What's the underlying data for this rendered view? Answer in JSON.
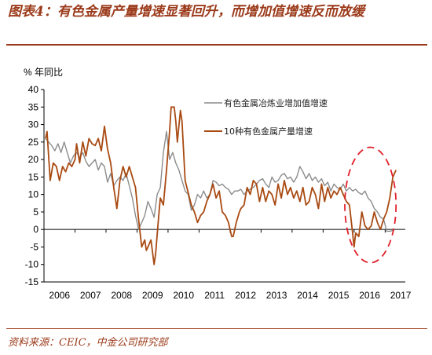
{
  "figure": {
    "title": "图表4：有色金属产量增速显著回升，而增加值增速反而放缓",
    "source": "资料来源：CEIC，中金公司研究部"
  },
  "colors": {
    "title": "#9b3a1a",
    "series_value_added": "#8c8c8c",
    "series_output": "#a94a12",
    "highlight": "#e0202a"
  },
  "chart_data": {
    "type": "line",
    "ylabel": "% 年同比",
    "ylim": [
      -15,
      40
    ],
    "yticks": [
      -15,
      -10,
      -5,
      0,
      5,
      10,
      15,
      20,
      25,
      30,
      35,
      40
    ],
    "xlim": [
      2006.0,
      2017.65
    ],
    "xticks": [
      "2006",
      "2007",
      "2008",
      "2009",
      "2010",
      "2011",
      "2012",
      "2013",
      "2014",
      "2015",
      "2016",
      "2017"
    ],
    "legend_position": "top-right",
    "highlight": {
      "shape": "dashed-ellipse",
      "x_range": [
        2015.7,
        2017.35
      ],
      "y_range": [
        -9.5,
        23.5
      ]
    },
    "series": [
      {
        "name": "有色金属冶炼业增加值增速",
        "style": "gray",
        "points": [
          [
            2006.05,
            26
          ],
          [
            2006.15,
            25
          ],
          [
            2006.25,
            24
          ],
          [
            2006.35,
            22.5
          ],
          [
            2006.45,
            24.5
          ],
          [
            2006.55,
            22
          ],
          [
            2006.65,
            25
          ],
          [
            2006.75,
            22
          ],
          [
            2006.85,
            19
          ],
          [
            2006.95,
            21
          ],
          [
            2007.05,
            22
          ],
          [
            2007.15,
            20.5
          ],
          [
            2007.25,
            22
          ],
          [
            2007.35,
            19.5
          ],
          [
            2007.45,
            18
          ],
          [
            2007.55,
            19
          ],
          [
            2007.65,
            20
          ],
          [
            2007.75,
            17
          ],
          [
            2007.85,
            19
          ],
          [
            2007.95,
            18
          ],
          [
            2008.05,
            13.5
          ],
          [
            2008.15,
            16
          ],
          [
            2008.25,
            12.5
          ],
          [
            2008.35,
            14
          ],
          [
            2008.45,
            15
          ],
          [
            2008.55,
            14
          ],
          [
            2008.65,
            16
          ],
          [
            2008.75,
            12.5
          ],
          [
            2008.85,
            9
          ],
          [
            2008.95,
            4
          ],
          [
            2009.05,
            0
          ],
          [
            2009.15,
            2
          ],
          [
            2009.25,
            4
          ],
          [
            2009.35,
            8
          ],
          [
            2009.45,
            6
          ],
          [
            2009.55,
            3.5
          ],
          [
            2009.65,
            10
          ],
          [
            2009.75,
            12
          ],
          [
            2009.85,
            22
          ],
          [
            2009.95,
            28
          ],
          [
            2010.05,
            20
          ],
          [
            2010.15,
            22
          ],
          [
            2010.25,
            19
          ],
          [
            2010.35,
            17
          ],
          [
            2010.45,
            14
          ],
          [
            2010.55,
            11
          ],
          [
            2010.65,
            10
          ],
          [
            2010.75,
            5.5
          ],
          [
            2010.85,
            7
          ],
          [
            2010.95,
            10
          ],
          [
            2011.05,
            9
          ],
          [
            2011.15,
            11
          ],
          [
            2011.25,
            9
          ],
          [
            2011.35,
            10
          ],
          [
            2011.45,
            14
          ],
          [
            2011.55,
            13.5
          ],
          [
            2011.65,
            12.5
          ],
          [
            2011.75,
            13
          ],
          [
            2011.85,
            12
          ],
          [
            2011.95,
            11.5
          ],
          [
            2012.05,
            10
          ],
          [
            2012.15,
            11
          ],
          [
            2012.25,
            11
          ],
          [
            2012.35,
            11.5
          ],
          [
            2012.45,
            10
          ],
          [
            2012.55,
            11
          ],
          [
            2012.65,
            11.5
          ],
          [
            2012.75,
            12
          ],
          [
            2012.85,
            13
          ],
          [
            2012.95,
            14
          ],
          [
            2013.05,
            14.5
          ],
          [
            2013.15,
            13
          ],
          [
            2013.25,
            12
          ],
          [
            2013.35,
            15
          ],
          [
            2013.45,
            13.5
          ],
          [
            2013.55,
            14
          ],
          [
            2013.65,
            15.5
          ],
          [
            2013.75,
            16
          ],
          [
            2013.85,
            14.5
          ],
          [
            2013.95,
            15
          ],
          [
            2014.05,
            13.5
          ],
          [
            2014.15,
            15
          ],
          [
            2014.25,
            18
          ],
          [
            2014.35,
            16.5
          ],
          [
            2014.45,
            14.5
          ],
          [
            2014.55,
            16
          ],
          [
            2014.65,
            14
          ],
          [
            2014.75,
            15
          ],
          [
            2014.85,
            13.5
          ],
          [
            2014.95,
            14.5
          ],
          [
            2015.05,
            12.5
          ],
          [
            2015.15,
            13.5
          ],
          [
            2015.25,
            11
          ],
          [
            2015.35,
            13
          ],
          [
            2015.45,
            12
          ],
          [
            2015.55,
            11.5
          ],
          [
            2015.65,
            13
          ],
          [
            2015.75,
            11
          ],
          [
            2015.85,
            12
          ],
          [
            2015.95,
            11
          ],
          [
            2016.05,
            11.5
          ],
          [
            2016.15,
            10.5
          ],
          [
            2016.25,
            10
          ],
          [
            2016.35,
            11
          ],
          [
            2016.45,
            9
          ],
          [
            2016.55,
            8
          ],
          [
            2016.65,
            6
          ],
          [
            2016.75,
            5
          ],
          [
            2016.85,
            3.5
          ],
          [
            2016.95,
            3
          ],
          [
            2017.05,
            -0.5
          ],
          [
            2017.15,
            -0.5
          ],
          [
            2017.25,
            -0.3
          ]
        ]
      },
      {
        "name": "10种有色金属产量增速",
        "style": "brown",
        "points": [
          [
            2006.05,
            26
          ],
          [
            2006.1,
            28
          ],
          [
            2006.2,
            14
          ],
          [
            2006.3,
            19
          ],
          [
            2006.4,
            18
          ],
          [
            2006.5,
            14
          ],
          [
            2006.6,
            18
          ],
          [
            2006.7,
            16.5
          ],
          [
            2006.8,
            19
          ],
          [
            2006.9,
            18
          ],
          [
            2007.0,
            20
          ],
          [
            2007.05,
            24.5
          ],
          [
            2007.15,
            19
          ],
          [
            2007.25,
            25
          ],
          [
            2007.35,
            21
          ],
          [
            2007.45,
            26
          ],
          [
            2007.55,
            24.5
          ],
          [
            2007.65,
            24
          ],
          [
            2007.75,
            26
          ],
          [
            2007.85,
            22.5
          ],
          [
            2007.95,
            29.5
          ],
          [
            2008.05,
            23
          ],
          [
            2008.15,
            19
          ],
          [
            2008.25,
            12
          ],
          [
            2008.35,
            6
          ],
          [
            2008.45,
            14
          ],
          [
            2008.55,
            18
          ],
          [
            2008.65,
            15
          ],
          [
            2008.75,
            18
          ],
          [
            2008.85,
            15
          ],
          [
            2008.95,
            12
          ],
          [
            2009.05,
            3
          ],
          [
            2009.1,
            -1
          ],
          [
            2009.15,
            -5
          ],
          [
            2009.25,
            -3
          ],
          [
            2009.3,
            -6
          ],
          [
            2009.35,
            -5
          ],
          [
            2009.45,
            -3
          ],
          [
            2009.55,
            -10
          ],
          [
            2009.6,
            -7
          ],
          [
            2009.7,
            4
          ],
          [
            2009.75,
            9
          ],
          [
            2009.85,
            7
          ],
          [
            2009.95,
            17
          ],
          [
            2010.05,
            28
          ],
          [
            2010.1,
            35
          ],
          [
            2010.2,
            35
          ],
          [
            2010.25,
            31
          ],
          [
            2010.3,
            25
          ],
          [
            2010.4,
            34
          ],
          [
            2010.45,
            31
          ],
          [
            2010.55,
            14
          ],
          [
            2010.65,
            10.5
          ],
          [
            2010.75,
            7
          ],
          [
            2010.85,
            5
          ],
          [
            2010.95,
            2
          ],
          [
            2011.05,
            4
          ],
          [
            2011.15,
            5
          ],
          [
            2011.25,
            8
          ],
          [
            2011.35,
            10
          ],
          [
            2011.45,
            13
          ],
          [
            2011.55,
            9
          ],
          [
            2011.65,
            11
          ],
          [
            2011.75,
            5
          ],
          [
            2011.85,
            4
          ],
          [
            2011.95,
            2
          ],
          [
            2012.05,
            -2
          ],
          [
            2012.1,
            -2
          ],
          [
            2012.2,
            2
          ],
          [
            2012.3,
            5
          ],
          [
            2012.35,
            6
          ],
          [
            2012.45,
            7
          ],
          [
            2012.55,
            12
          ],
          [
            2012.65,
            10
          ],
          [
            2012.75,
            14
          ],
          [
            2012.85,
            13
          ],
          [
            2012.95,
            8
          ],
          [
            2013.05,
            12
          ],
          [
            2013.15,
            8
          ],
          [
            2013.25,
            11
          ],
          [
            2013.35,
            10
          ],
          [
            2013.45,
            7
          ],
          [
            2013.55,
            13
          ],
          [
            2013.65,
            9
          ],
          [
            2013.75,
            14
          ],
          [
            2013.85,
            10
          ],
          [
            2013.95,
            12
          ],
          [
            2014.05,
            9
          ],
          [
            2014.15,
            11
          ],
          [
            2014.25,
            8
          ],
          [
            2014.35,
            12
          ],
          [
            2014.45,
            7
          ],
          [
            2014.55,
            8
          ],
          [
            2014.65,
            12
          ],
          [
            2014.75,
            10
          ],
          [
            2014.85,
            6
          ],
          [
            2014.95,
            13
          ],
          [
            2015.05,
            8
          ],
          [
            2015.15,
            12
          ],
          [
            2015.25,
            9
          ],
          [
            2015.35,
            11
          ],
          [
            2015.45,
            10
          ],
          [
            2015.55,
            12
          ],
          [
            2015.65,
            10
          ],
          [
            2015.75,
            8
          ],
          [
            2015.85,
            7
          ],
          [
            2015.95,
            -1
          ],
          [
            2016.0,
            -5
          ],
          [
            2016.05,
            -1
          ],
          [
            2016.15,
            -2
          ],
          [
            2016.25,
            5
          ],
          [
            2016.35,
            1
          ],
          [
            2016.45,
            0
          ],
          [
            2016.55,
            1
          ],
          [
            2016.65,
            5
          ],
          [
            2016.75,
            2
          ],
          [
            2016.85,
            0
          ],
          [
            2016.95,
            3
          ],
          [
            2017.05,
            5
          ],
          [
            2017.15,
            9
          ],
          [
            2017.25,
            15
          ],
          [
            2017.35,
            17
          ]
        ]
      }
    ]
  }
}
